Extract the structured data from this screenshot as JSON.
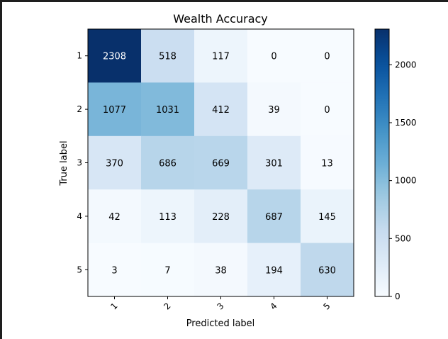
{
  "chart_data": {
    "type": "heatmap",
    "title": "Wealth Accuracy",
    "xlabel": "Predicted label",
    "ylabel": "True label",
    "x_categories": [
      "1",
      "2",
      "3",
      "4",
      "5"
    ],
    "y_categories": [
      "1",
      "2",
      "3",
      "4",
      "5"
    ],
    "values": [
      [
        2308,
        518,
        117,
        0,
        0
      ],
      [
        1077,
        1031,
        412,
        39,
        0
      ],
      [
        370,
        686,
        669,
        301,
        13
      ],
      [
        42,
        113,
        228,
        687,
        145
      ],
      [
        3,
        7,
        38,
        194,
        630
      ]
    ],
    "colormap": "Blues",
    "colorbar": {
      "min": 0,
      "max": 2308,
      "ticks": [
        0,
        500,
        1000,
        1500,
        2000
      ]
    },
    "x_tick_rotation": "45 degrees",
    "grid": false,
    "colors": {
      "low": "#f7fbff",
      "high": "#08306b",
      "text_dark": "#000000",
      "text_light": "#ffffff"
    }
  }
}
